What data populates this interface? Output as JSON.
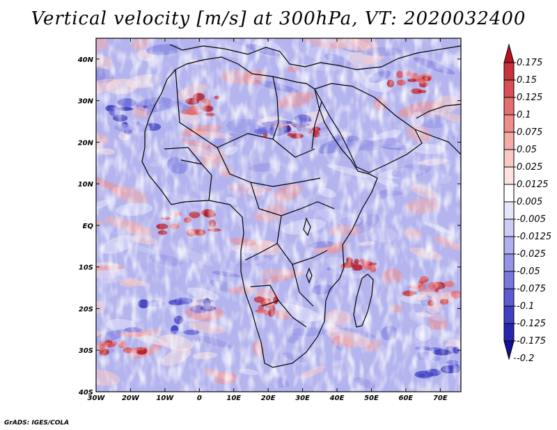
{
  "title": "Vertical velocity [m/s] at 300hPa, VT: 2020032400",
  "credit": "GrADS: IGES/COLA",
  "map": {
    "lon_labels": [
      "30W",
      "20W",
      "10W",
      "0",
      "10E",
      "20E",
      "30E",
      "40E",
      "50E",
      "60E",
      "70E"
    ],
    "lat_labels": [
      "40N",
      "30N",
      "20N",
      "10N",
      "EQ",
      "10S",
      "20S",
      "30S",
      "40S"
    ],
    "lon_range": [
      -30,
      76
    ],
    "lat_range": [
      -40,
      45
    ]
  },
  "colorbar": {
    "labels": [
      "0.175",
      "0.15",
      "0.125",
      "0.1",
      "0.075",
      "0.05",
      "0.025",
      "0.0125",
      "0.005",
      "-0.005",
      "-0.0125",
      "-0.025",
      "-0.05",
      "-0.075",
      "-0.1",
      "-0.125",
      "-0.175",
      "-0.2"
    ],
    "colors": [
      "#b4141e",
      "#c8323a",
      "#d85055",
      "#e46e70",
      "#ee8e8c",
      "#f4aca8",
      "#f8c8c4",
      "#fbe2df",
      "#ffffff",
      "#e6e6fb",
      "#ccccf5",
      "#b0b0ee",
      "#9494e6",
      "#7878de",
      "#5c5cd4",
      "#4040c4",
      "#2626b0",
      "#12129a"
    ]
  }
}
